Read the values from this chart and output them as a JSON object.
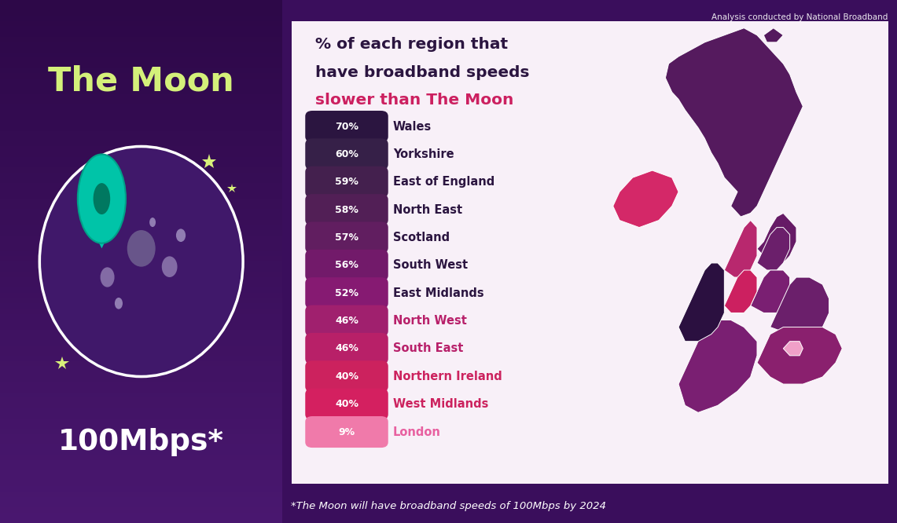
{
  "title_line1": "% of each region that",
  "title_line2": "have broadband speeds",
  "title_line3": "slower than The Moon",
  "regions": [
    {
      "label": "Wales",
      "pct": "70%"
    },
    {
      "label": "Yorkshire",
      "pct": "60%"
    },
    {
      "label": "East of England",
      "pct": "59%"
    },
    {
      "label": "North East",
      "pct": "58%"
    },
    {
      "label": "Scotland",
      "pct": "57%"
    },
    {
      "label": "South West",
      "pct": "56%"
    },
    {
      "label": "East Midlands",
      "pct": "52%"
    },
    {
      "label": "North West",
      "pct": "46%"
    },
    {
      "label": "South East",
      "pct": "46%"
    },
    {
      "label": "Northern Ireland",
      "pct": "40%"
    },
    {
      "label": "West Midlands",
      "pct": "40%"
    },
    {
      "label": "London",
      "pct": "9%"
    }
  ],
  "badge_colors": [
    "#2b1540",
    "#362048",
    "#44204e",
    "#521f56",
    "#611e60",
    "#721a6a",
    "#861a72",
    "#a0206e",
    "#b82068",
    "#cc225e",
    "#d42060",
    "#f07aaa"
  ],
  "region_text_colors": [
    "#2b1540",
    "#2b1540",
    "#2b1540",
    "#2b1540",
    "#2b1540",
    "#2b1540",
    "#2b1540",
    "#b8206a",
    "#b8206a",
    "#cc225e",
    "#cc225e",
    "#e860a0"
  ],
  "left_bg_gradient_top": "#2d0848",
  "left_bg_gradient_bot": "#4a1870",
  "card_bg_color": "#f8f0f8",
  "moon_text_color": "#d4f07a",
  "analysis_text": "Analysis conducted by National Broadband",
  "footer_text": "*The Moon will have broadband speeds of 100Mbps by 2024",
  "left_title": "The Moon",
  "left_mbps": "100Mbps*",
  "title_color_dark": "#2b1540",
  "title_color_red": "#cc2060",
  "map_scotland_color": "#551a5e",
  "map_ne_color": "#661a66",
  "map_nw_color": "#b8286e",
  "map_yorkshire_color": "#6b1f6b",
  "map_em_color": "#7a1f72",
  "map_wm_color": "#cc2060",
  "map_eoe_color": "#6b1f6b",
  "map_se_color": "#8a206e",
  "map_london_color": "#f0a0c8",
  "map_sw_color": "#7a1f72",
  "map_wales_color": "#2b1040",
  "map_ni_color": "#d42868"
}
